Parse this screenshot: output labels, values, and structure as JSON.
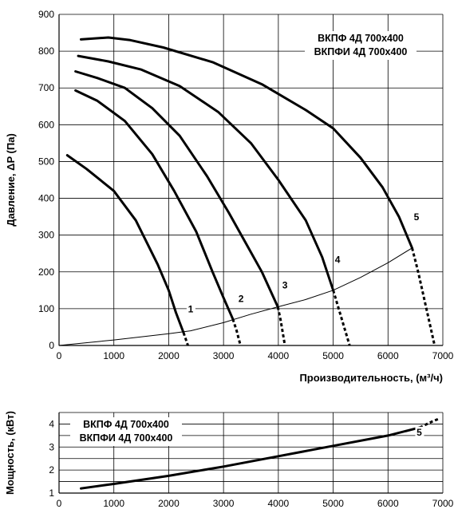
{
  "chart_data": [
    {
      "type": "line",
      "xlim": [
        0,
        7000
      ],
      "ylim": [
        0,
        900
      ],
      "x_ticks": [
        "0",
        "1000",
        "2000",
        "3000",
        "4000",
        "5000",
        "6000",
        "7000"
      ],
      "y_ticks": [
        "0",
        "100",
        "200",
        "300",
        "400",
        "500",
        "600",
        "700",
        "800",
        "900"
      ],
      "ylabel": "Давление, ΔP (Па)",
      "xlabel": "Производительность, (м³/ч)",
      "legend_lines": [
        "ВКПФ  4Д 700x400",
        "ВКПФИ  4Д 700x400"
      ],
      "grid": true,
      "series": [
        {
          "name": "1",
          "values": [
            [
              150,
              517
            ],
            [
              500,
              480
            ],
            [
              1000,
              420
            ],
            [
              1400,
              340
            ],
            [
              1800,
              220
            ],
            [
              2000,
              150
            ],
            [
              2130,
              90
            ],
            [
              2270,
              35
            ]
          ],
          "dashed": [
            [
              2270,
              35
            ],
            [
              2310,
              18
            ],
            [
              2350,
              0
            ]
          ]
        },
        {
          "name": "2",
          "values": [
            [
              300,
              693
            ],
            [
              700,
              665
            ],
            [
              1200,
              610
            ],
            [
              1700,
              520
            ],
            [
              2100,
              420
            ],
            [
              2500,
              310
            ],
            [
              2800,
              200
            ],
            [
              3000,
              130
            ],
            [
              3170,
              72
            ]
          ],
          "dashed": [
            [
              3170,
              72
            ],
            [
              3240,
              40
            ],
            [
              3310,
              0
            ]
          ]
        },
        {
          "name": "3",
          "values": [
            [
              300,
              745
            ],
            [
              700,
              727
            ],
            [
              1200,
              700
            ],
            [
              1700,
              645
            ],
            [
              2200,
              570
            ],
            [
              2700,
              460
            ],
            [
              3100,
              360
            ],
            [
              3400,
              280
            ],
            [
              3700,
              200
            ],
            [
              3990,
              105
            ]
          ],
          "dashed": [
            [
              3990,
              105
            ],
            [
              4040,
              70
            ],
            [
              4120,
              0
            ]
          ]
        },
        {
          "name": "4",
          "values": [
            [
              350,
              787
            ],
            [
              900,
              772
            ],
            [
              1500,
              750
            ],
            [
              2200,
              705
            ],
            [
              2900,
              635
            ],
            [
              3500,
              550
            ],
            [
              4000,
              450
            ],
            [
              4500,
              340
            ],
            [
              4800,
              240
            ],
            [
              5000,
              150
            ]
          ],
          "dashed": [
            [
              5000,
              150
            ],
            [
              5080,
              110
            ],
            [
              5200,
              50
            ],
            [
              5300,
              0
            ]
          ]
        },
        {
          "name": "5",
          "values": [
            [
              400,
              832
            ],
            [
              900,
              837
            ],
            [
              1300,
              830
            ],
            [
              1900,
              810
            ],
            [
              2800,
              770
            ],
            [
              3700,
              710
            ],
            [
              4500,
              640
            ],
            [
              5000,
              590
            ],
            [
              5500,
              510
            ],
            [
              5900,
              430
            ],
            [
              6200,
              350
            ],
            [
              6440,
              265
            ]
          ],
          "dashed": [
            [
              6440,
              265
            ],
            [
              6550,
              200
            ],
            [
              6700,
              100
            ],
            [
              6850,
              0
            ]
          ]
        },
        {
          "name": "system",
          "values": [
            [
              0,
              0
            ],
            [
              1000,
              15
            ],
            [
              2000,
              32
            ],
            [
              2400,
              40
            ],
            [
              3000,
              62
            ],
            [
              3500,
              85
            ],
            [
              3990,
              105
            ],
            [
              4500,
              125
            ],
            [
              5000,
              150
            ],
            [
              5500,
              185
            ],
            [
              6000,
              225
            ],
            [
              6440,
              265
            ]
          ],
          "thin": true
        }
      ],
      "curve_labels": [
        {
          "text": "1",
          "x": 2400,
          "y": 90
        },
        {
          "text": "2",
          "x": 3320,
          "y": 118
        },
        {
          "text": "3",
          "x": 4120,
          "y": 155
        },
        {
          "text": "4",
          "x": 5080,
          "y": 225
        },
        {
          "text": "5",
          "x": 6520,
          "y": 340
        }
      ]
    },
    {
      "type": "line",
      "xlim": [
        0,
        7000
      ],
      "ylim": [
        1,
        4.5
      ],
      "x_ticks": [
        "0",
        "1000",
        "2000",
        "3000",
        "4000",
        "5000",
        "6000",
        "7000"
      ],
      "y_ticks": [
        "1",
        "2",
        "3",
        "4"
      ],
      "ylabel": "Мощность, (кВт)",
      "legend_lines": [
        "ВКПФ  4Д 700x400",
        "ВКПФИ  4Д 700x400"
      ],
      "grid": true,
      "series": [
        {
          "name": "5",
          "values": [
            [
              400,
              1.2
            ],
            [
              1000,
              1.4
            ],
            [
              2000,
              1.75
            ],
            [
              3000,
              2.15
            ],
            [
              4000,
              2.6
            ],
            [
              5000,
              3.05
            ],
            [
              6000,
              3.5
            ],
            [
              6580,
              3.85
            ]
          ],
          "dashed": [
            [
              6580,
              3.85
            ],
            [
              6800,
              4.1
            ],
            [
              6950,
              4.25
            ]
          ]
        }
      ],
      "curve_labels": [
        {
          "text": "5",
          "x": 6570,
          "y": 3.5
        }
      ]
    }
  ]
}
